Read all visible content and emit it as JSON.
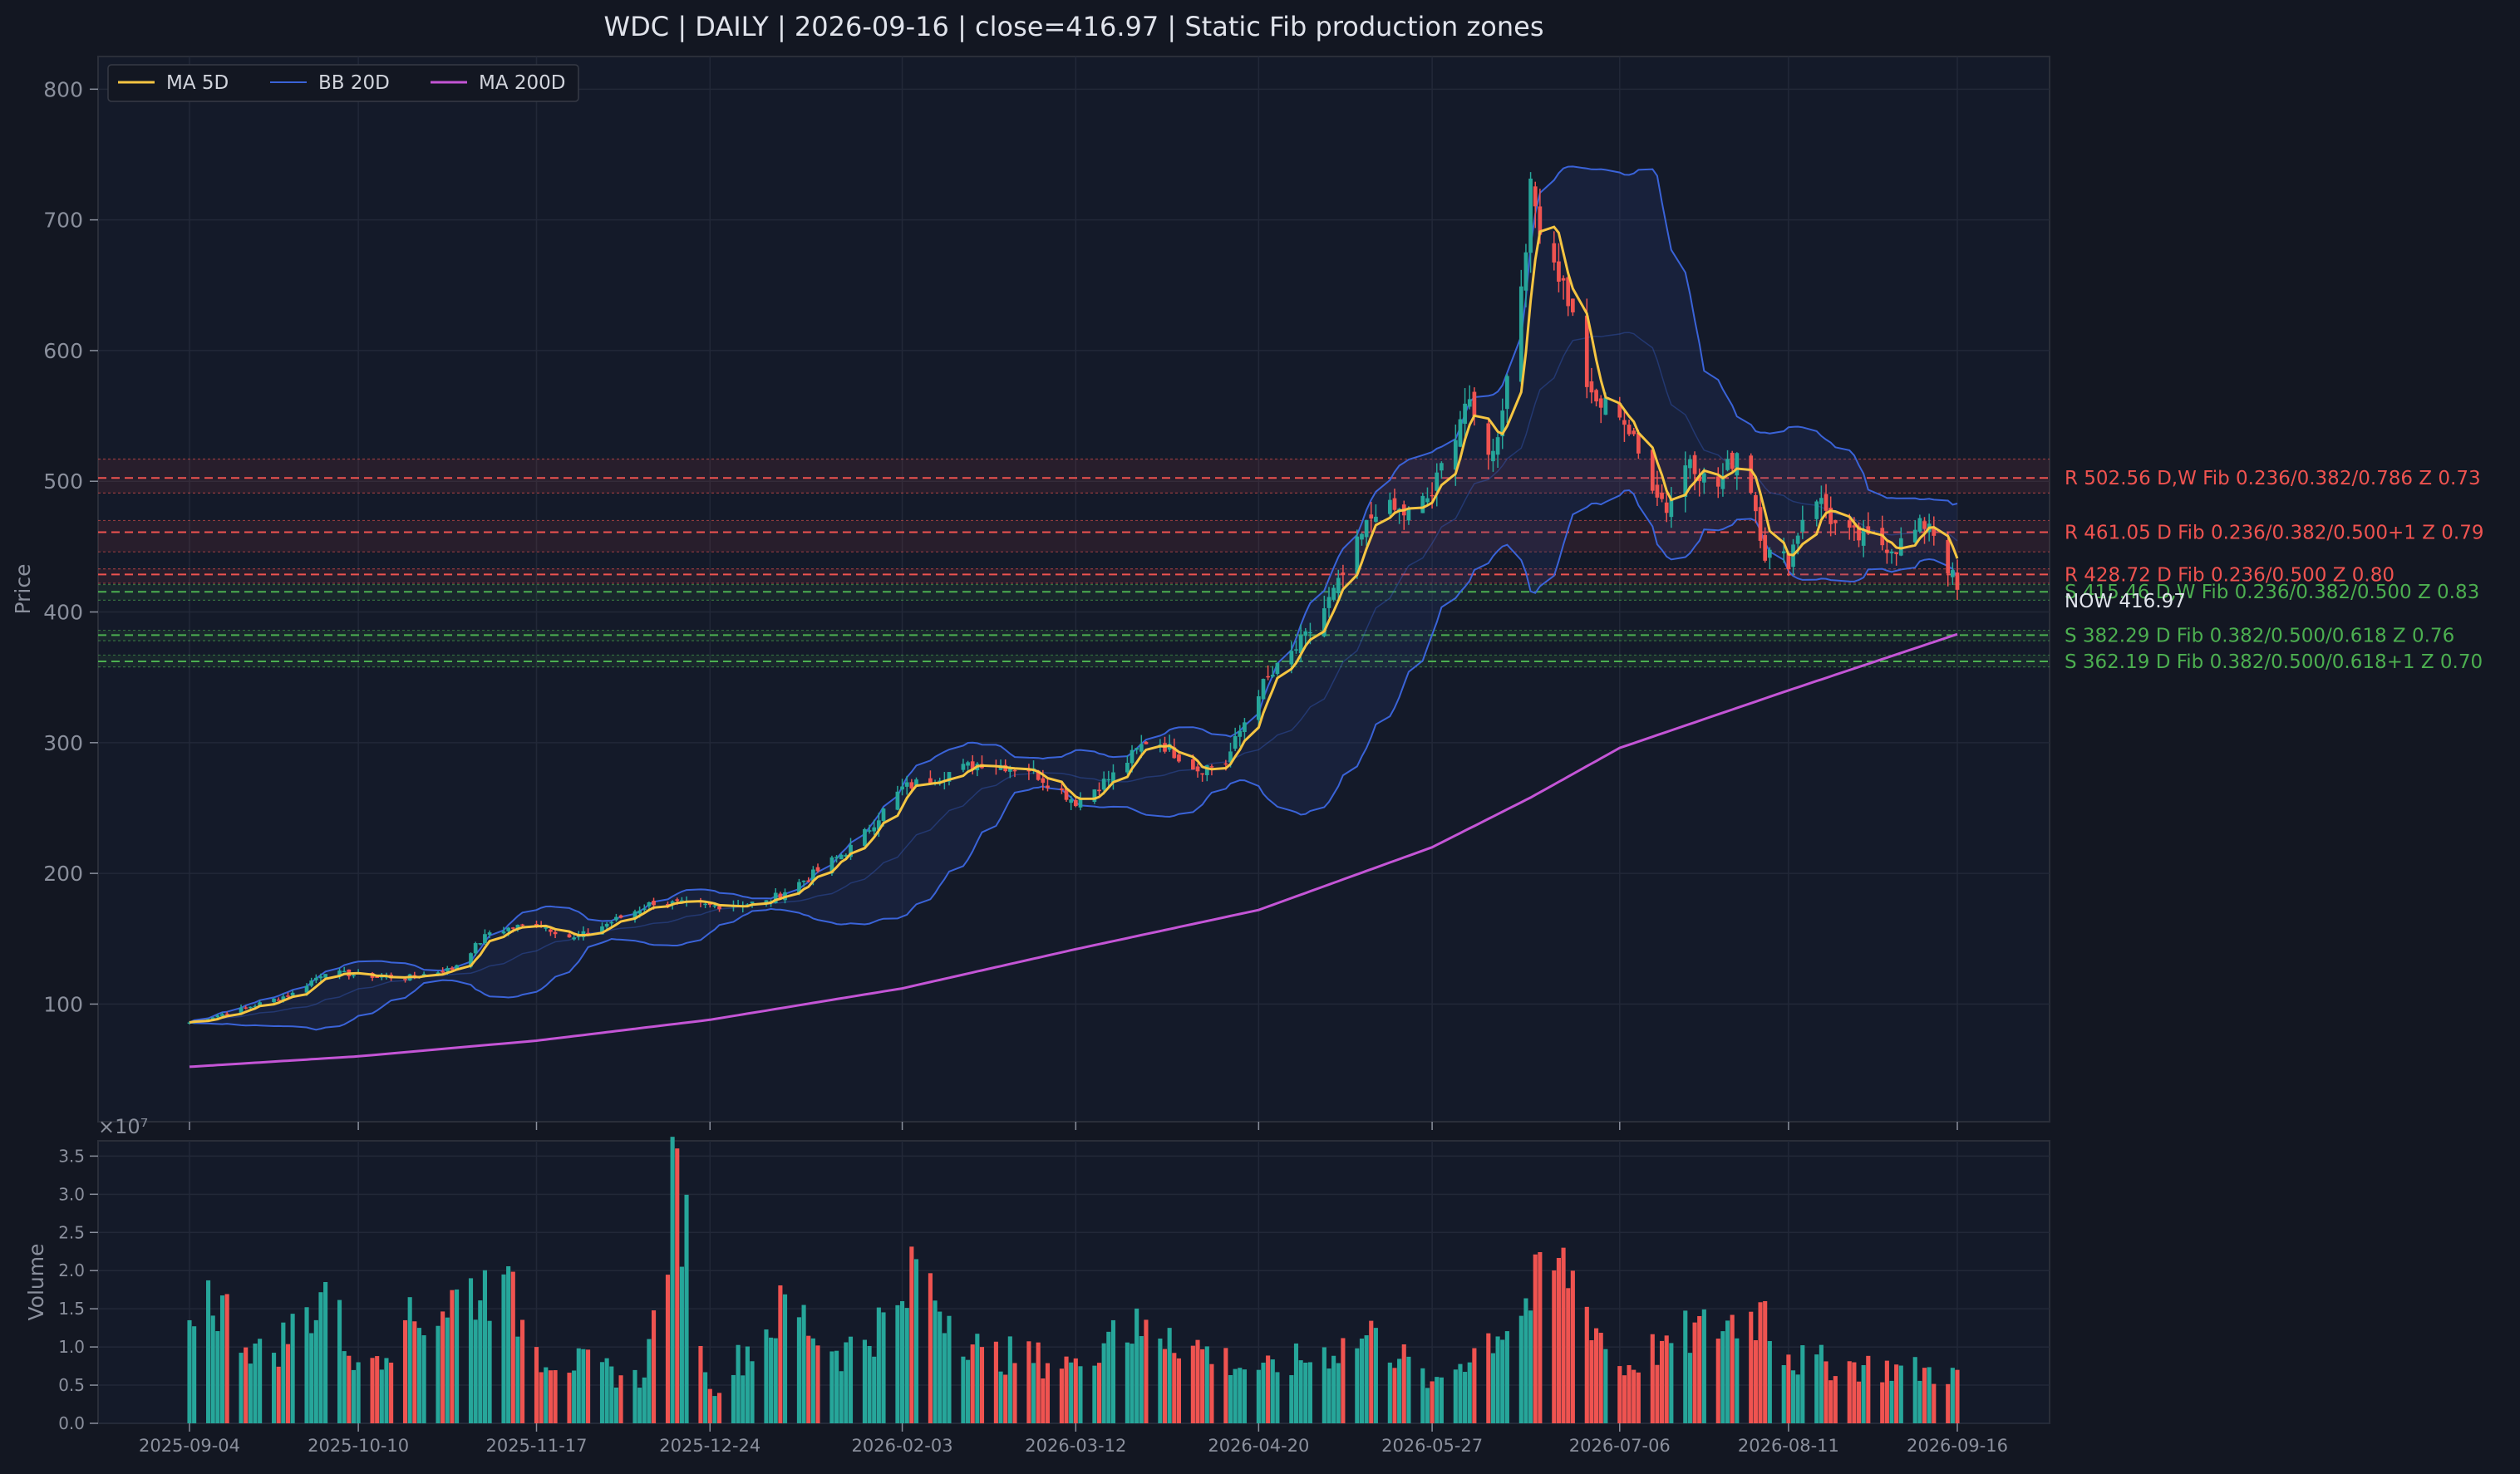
{
  "chart_data": [
    {
      "type": "candlestick",
      "title": "WDC  |  DAILY  |  2026-09-16  |  close=416.97  |  Static Fib production zones",
      "ylabel": "Price",
      "ylim": [
        10,
        825
      ],
      "yticks": [
        100,
        200,
        300,
        400,
        500,
        600,
        700,
        800
      ],
      "grid": true,
      "legend_position": "top-left",
      "x_range": [
        "2025-09-04",
        "2026-09-16"
      ],
      "xticks": [
        "2025-09-04",
        "2025-10-10",
        "2025-11-17",
        "2025-12-24",
        "2026-02-03",
        "2026-03-12",
        "2026-04-20",
        "2026-05-27",
        "2026-07-06",
        "2026-08-11",
        "2026-09-16"
      ],
      "legend": [
        {
          "name": "MA 5D",
          "color": "#f5c542"
        },
        {
          "name": "BB 20D",
          "color": "#3a63d8"
        },
        {
          "name": "MA 200D",
          "color": "#c455d6"
        }
      ],
      "close_anchors": [
        [
          "2025-09-04",
          86
        ],
        [
          "2025-09-15",
          96
        ],
        [
          "2025-09-26",
          108
        ],
        [
          "2025-10-03",
          125
        ],
        [
          "2025-10-10",
          122
        ],
        [
          "2025-10-20",
          120
        ],
        [
          "2025-10-30",
          127
        ],
        [
          "2025-11-07",
          155
        ],
        [
          "2025-11-17",
          162
        ],
        [
          "2025-11-25",
          150
        ],
        [
          "2025-12-03",
          163
        ],
        [
          "2025-12-12",
          178
        ],
        [
          "2025-12-24",
          175
        ],
        [
          "2026-01-05",
          178
        ],
        [
          "2026-01-14",
          197
        ],
        [
          "2026-01-24",
          222
        ],
        [
          "2026-02-03",
          265
        ],
        [
          "2026-02-11",
          275
        ],
        [
          "2026-02-20",
          285
        ],
        [
          "2026-03-02",
          280
        ],
        [
          "2026-03-12",
          255
        ],
        [
          "2026-03-20",
          275
        ],
        [
          "2026-03-28",
          305
        ],
        [
          "2026-04-07",
          280
        ],
        [
          "2026-04-13",
          285
        ],
        [
          "2026-04-20",
          340
        ],
        [
          "2026-04-30",
          380
        ],
        [
          "2026-05-07",
          420
        ],
        [
          "2026-05-15",
          480
        ],
        [
          "2026-05-22",
          475
        ],
        [
          "2026-05-27",
          490
        ],
        [
          "2026-06-03",
          560
        ],
        [
          "2026-06-09",
          520
        ],
        [
          "2026-06-14",
          620
        ],
        [
          "2026-06-17",
          720
        ],
        [
          "2026-06-21",
          680
        ],
        [
          "2026-06-25",
          640
        ],
        [
          "2026-06-30",
          560
        ],
        [
          "2026-07-06",
          555
        ],
        [
          "2026-07-10",
          520
        ],
        [
          "2026-07-16",
          480
        ],
        [
          "2026-07-21",
          520
        ],
        [
          "2026-07-26",
          490
        ],
        [
          "2026-08-01",
          530
        ],
        [
          "2026-08-06",
          445
        ],
        [
          "2026-08-11",
          440
        ],
        [
          "2026-08-16",
          495
        ],
        [
          "2026-08-22",
          460
        ],
        [
          "2026-08-28",
          455
        ],
        [
          "2026-09-03",
          450
        ],
        [
          "2026-09-10",
          470
        ],
        [
          "2026-09-16",
          416.97
        ]
      ],
      "ma200_anchors": [
        [
          "2025-09-04",
          52
        ],
        [
          "2025-10-10",
          60
        ],
        [
          "2025-11-17",
          72
        ],
        [
          "2025-12-24",
          88
        ],
        [
          "2026-02-03",
          112
        ],
        [
          "2026-03-12",
          142
        ],
        [
          "2026-04-20",
          172
        ],
        [
          "2026-05-27",
          220
        ],
        [
          "2026-06-17",
          258
        ],
        [
          "2026-07-06",
          296
        ],
        [
          "2026-08-11",
          340
        ],
        [
          "2026-09-16",
          383
        ]
      ],
      "zones": [
        {
          "label": "R 502.56  D,W  Fib 0.236/0.382/0.786  Z 0.73",
          "price": 502.56,
          "kind": "resistance",
          "band": [
            491,
            517
          ]
        },
        {
          "label": "R 461.05  D  Fib 0.236/0.382/0.500+1  Z 0.79",
          "price": 461.05,
          "kind": "resistance",
          "band": [
            446,
            470
          ]
        },
        {
          "label": "R 428.72  D  Fib 0.236/0.500  Z 0.80",
          "price": 428.72,
          "kind": "resistance",
          "band": [
            422,
            433
          ]
        },
        {
          "label": "S 415.46  D,W  Fib 0.236/0.382/0.500  Z 0.83",
          "price": 415.46,
          "kind": "support",
          "band": [
            409,
            421
          ]
        },
        {
          "label": "S 382.29  D  Fib 0.382/0.500/0.618  Z 0.76",
          "price": 382.29,
          "kind": "support",
          "band": [
            378,
            386
          ]
        },
        {
          "label": "S 362.19  D  Fib 0.382/0.500/0.618+1  Z 0.70",
          "price": 362.19,
          "kind": "support",
          "band": [
            358,
            367
          ]
        }
      ],
      "now_label": "NOW 416.97",
      "colors": {
        "up": "#26a69a",
        "down": "#ef5350",
        "resistance": "#ef5350",
        "support": "#4caf50",
        "ma5": "#f5c542",
        "bb": "#3a63d8",
        "ma200": "#c455d6"
      }
    },
    {
      "type": "bar",
      "ylabel": "Volume",
      "scale_label": "×10⁷",
      "yticks": [
        "0.0",
        "0.5",
        "1.0",
        "1.5",
        "2.0",
        "2.5",
        "3.0",
        "3.5"
      ],
      "ylim": [
        0,
        3.7
      ],
      "volume_anchors": [
        [
          "2025-09-04",
          1.35
        ],
        [
          "2025-09-06",
          2.02
        ],
        [
          "2025-09-20",
          0.9
        ],
        [
          "2025-10-03",
          1.85
        ],
        [
          "2025-10-10",
          0.8
        ],
        [
          "2025-10-20",
          1.35
        ],
        [
          "2025-11-03",
          1.9
        ],
        [
          "2025-11-10",
          1.95
        ],
        [
          "2025-11-17",
          1.0
        ],
        [
          "2025-12-10",
          0.6
        ],
        [
          "2025-12-17",
          3.6
        ],
        [
          "2025-12-24",
          0.45
        ],
        [
          "2026-01-10",
          1.7
        ],
        [
          "2026-01-20",
          0.95
        ],
        [
          "2026-02-03",
          1.6
        ],
        [
          "2026-02-06",
          2.15
        ],
        [
          "2026-02-20",
          1.0
        ],
        [
          "2026-03-12",
          0.85
        ],
        [
          "2026-03-20",
          1.35
        ],
        [
          "2026-04-01",
          1.25
        ],
        [
          "2026-04-20",
          0.7
        ],
        [
          "2026-05-15",
          1.25
        ],
        [
          "2026-05-27",
          0.55
        ],
        [
          "2026-06-14",
          1.55
        ],
        [
          "2026-06-24",
          2.3
        ],
        [
          "2026-07-06",
          0.75
        ],
        [
          "2026-07-16",
          1.15
        ],
        [
          "2026-08-06",
          1.6
        ],
        [
          "2026-08-11",
          0.9
        ],
        [
          "2026-09-16",
          0.7
        ]
      ]
    }
  ]
}
